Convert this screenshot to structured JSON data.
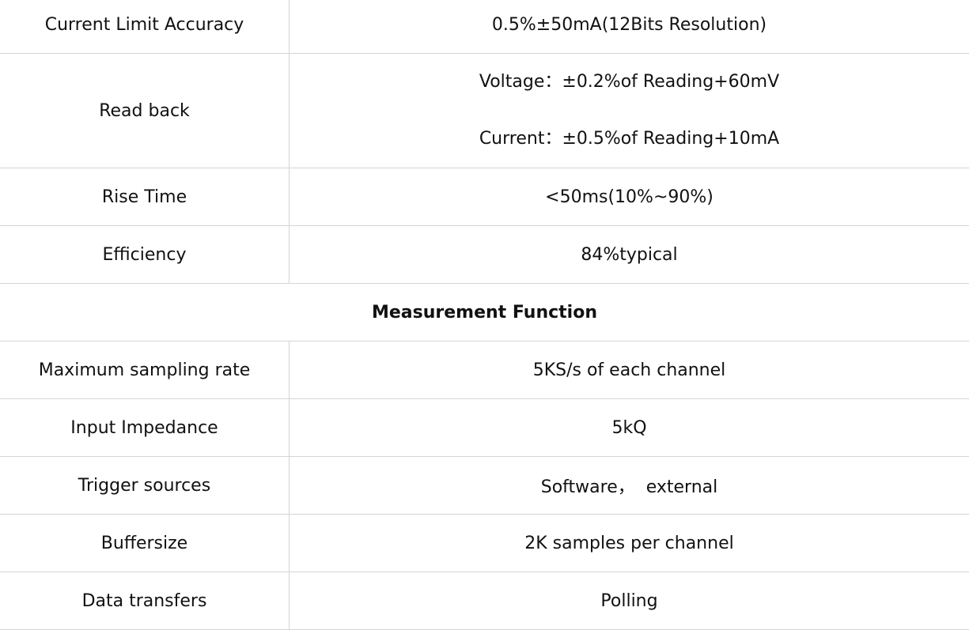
{
  "rows_before": [
    {
      "label": "Current Limit Accuracy",
      "value": [
        "0.5%±50mA(12Bits Resolution)"
      ]
    },
    {
      "label": "Read back",
      "value": [
        "Voltage：±0.2%of Reading+60mV",
        "Current：±0.5%of Reading+10mA"
      ]
    },
    {
      "label": "Rise Time",
      "value": [
        "<50ms(10%~90%)"
      ]
    },
    {
      "label": "Efficiency",
      "value": [
        "84%typical"
      ]
    }
  ],
  "section_title": "Measurement Function",
  "rows_after": [
    {
      "label": "Maximum sampling rate",
      "value": "5KS/s of each channel"
    },
    {
      "label": "Input Impedance",
      "value": "5kQ"
    },
    {
      "label": "Trigger sources",
      "value": "Software，  external"
    },
    {
      "label": "Buffersize",
      "value": "2K samples per channel"
    },
    {
      "label": "Data transfers",
      "value": "Polling"
    }
  ]
}
